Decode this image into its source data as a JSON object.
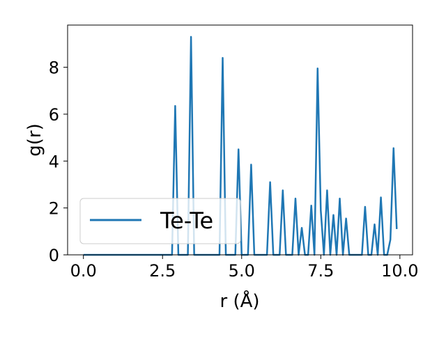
{
  "chart_data": {
    "type": "line",
    "title": "",
    "xlabel": "r (Å)",
    "ylabel": "g(r)",
    "xlim": [
      -0.5,
      10.4
    ],
    "ylim": [
      0,
      9.8
    ],
    "xticks": [
      0.0,
      2.5,
      5.0,
      7.5,
      10.0
    ],
    "xtick_labels": [
      "0.0",
      "2.5",
      "5.0",
      "7.5",
      "10.0"
    ],
    "yticks": [
      0,
      2,
      4,
      6,
      8
    ],
    "ytick_labels": [
      "0",
      "2",
      "4",
      "6",
      "8"
    ],
    "grid": false,
    "legend_position": "lower-left",
    "series": [
      {
        "name": "Te-Te",
        "color": "#1f77b4",
        "x": [
          0.0,
          2.8,
          2.9,
          3.0,
          3.3,
          3.4,
          3.5,
          4.3,
          4.4,
          4.5,
          4.8,
          4.9,
          5.0,
          5.2,
          5.3,
          5.4,
          5.8,
          5.9,
          6.0,
          6.2,
          6.3,
          6.4,
          6.6,
          6.7,
          6.8,
          6.9,
          7.0,
          7.1,
          7.2,
          7.3,
          7.4,
          7.5,
          7.6,
          7.7,
          7.8,
          7.9,
          8.0,
          8.1,
          8.2,
          8.3,
          8.4,
          8.5,
          8.8,
          8.9,
          9.0,
          9.1,
          9.2,
          9.3,
          9.4,
          9.5,
          9.6,
          9.7,
          9.8,
          9.9
        ],
        "y": [
          0,
          0,
          6.35,
          0,
          0,
          9.3,
          0,
          0,
          8.4,
          0,
          0,
          4.5,
          0,
          0,
          3.85,
          0,
          0,
          3.1,
          0,
          0,
          2.75,
          0,
          0,
          2.4,
          0,
          1.15,
          0,
          0,
          2.1,
          0,
          7.95,
          1.9,
          0,
          2.75,
          0,
          1.7,
          0,
          2.4,
          0,
          1.55,
          0,
          0,
          0,
          2.05,
          0,
          0,
          1.3,
          0,
          2.45,
          0,
          0,
          0.65,
          4.55,
          1.1
        ]
      }
    ]
  }
}
